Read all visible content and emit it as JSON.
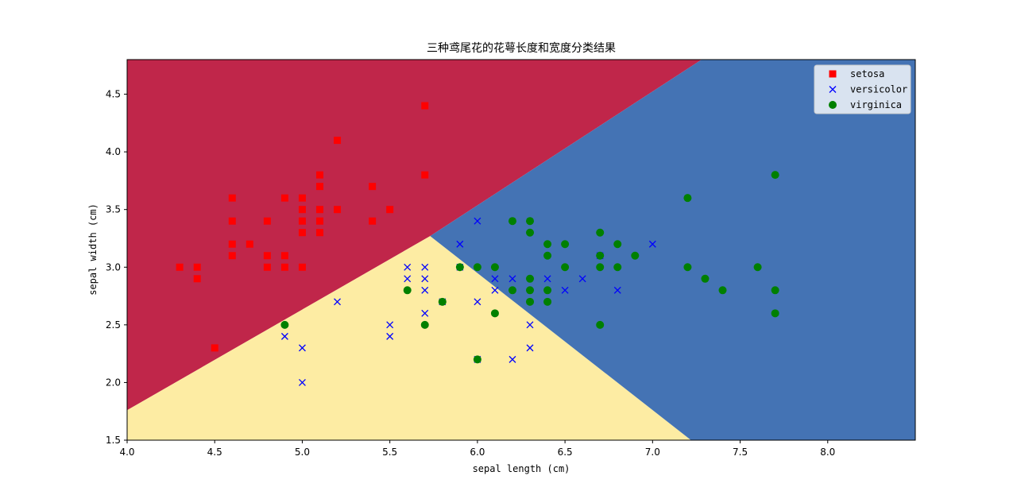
{
  "chart_data": {
    "type": "scatter",
    "title": "三种鸢尾花的花萼长度和宽度分类结果",
    "xlabel": "sepal length (cm)",
    "ylabel": "sepal width (cm)",
    "xlim": [
      4.0,
      8.5
    ],
    "ylim": [
      1.5,
      4.8
    ],
    "xticks": [
      "4.0",
      "4.5",
      "5.0",
      "5.5",
      "6.0",
      "6.5",
      "7.0",
      "7.5",
      "8.0"
    ],
    "yticks": [
      "1.5",
      "2.0",
      "2.5",
      "3.0",
      "3.5",
      "4.0",
      "4.5"
    ],
    "legend_position": "upper-right",
    "decision_regions": [
      {
        "class": "setosa",
        "color": "#c0264a",
        "polygon": [
          [
            4.0,
            1.76
          ],
          [
            5.73,
            3.27
          ],
          [
            7.28,
            4.8
          ],
          [
            4.0,
            4.8
          ]
        ]
      },
      {
        "class": "versicolor",
        "color": "#fdeca3",
        "polygon": [
          [
            4.0,
            1.5
          ],
          [
            7.22,
            1.5
          ],
          [
            5.73,
            3.27
          ],
          [
            4.0,
            1.76
          ]
        ]
      },
      {
        "class": "virginica",
        "color": "#4473b4",
        "polygon": [
          [
            5.73,
            3.27
          ],
          [
            7.22,
            1.5
          ],
          [
            8.5,
            1.5
          ],
          [
            8.5,
            4.8
          ],
          [
            7.28,
            4.8
          ]
        ]
      }
    ],
    "series": [
      {
        "name": "setosa",
        "marker": "square",
        "color": "#ff0000",
        "points": [
          [
            4.3,
            3.0
          ],
          [
            4.4,
            3.0
          ],
          [
            4.4,
            2.9
          ],
          [
            4.5,
            2.3
          ],
          [
            4.6,
            3.6
          ],
          [
            4.6,
            3.4
          ],
          [
            4.6,
            3.2
          ],
          [
            4.6,
            3.1
          ],
          [
            4.7,
            3.2
          ],
          [
            4.8,
            3.4
          ],
          [
            4.8,
            3.1
          ],
          [
            4.8,
            3.0
          ],
          [
            4.9,
            3.6
          ],
          [
            4.9,
            3.1
          ],
          [
            4.9,
            3.0
          ],
          [
            5.0,
            3.6
          ],
          [
            5.0,
            3.5
          ],
          [
            5.0,
            3.4
          ],
          [
            5.0,
            3.3
          ],
          [
            5.0,
            3.0
          ],
          [
            5.1,
            3.8
          ],
          [
            5.1,
            3.7
          ],
          [
            5.1,
            3.5
          ],
          [
            5.1,
            3.4
          ],
          [
            5.1,
            3.3
          ],
          [
            5.2,
            4.1
          ],
          [
            5.2,
            3.5
          ],
          [
            5.4,
            3.7
          ],
          [
            5.4,
            3.4
          ],
          [
            5.5,
            3.5
          ],
          [
            5.7,
            4.4
          ],
          [
            5.7,
            3.8
          ]
        ]
      },
      {
        "name": "versicolor",
        "marker": "x",
        "color": "#0000ff",
        "points": [
          [
            4.9,
            2.4
          ],
          [
            5.0,
            2.3
          ],
          [
            5.0,
            2.0
          ],
          [
            5.2,
            2.7
          ],
          [
            5.5,
            2.5
          ],
          [
            5.5,
            2.4
          ],
          [
            5.6,
            3.0
          ],
          [
            5.6,
            2.9
          ],
          [
            5.7,
            3.0
          ],
          [
            5.7,
            2.9
          ],
          [
            5.7,
            2.8
          ],
          [
            5.7,
            2.6
          ],
          [
            5.8,
            2.7
          ],
          [
            5.9,
            3.2
          ],
          [
            5.9,
            3.0
          ],
          [
            6.0,
            3.4
          ],
          [
            6.0,
            2.7
          ],
          [
            6.0,
            2.2
          ],
          [
            6.1,
            2.9
          ],
          [
            6.1,
            2.8
          ],
          [
            6.2,
            2.9
          ],
          [
            6.2,
            2.2
          ],
          [
            6.3,
            2.5
          ],
          [
            6.3,
            2.3
          ],
          [
            6.4,
            2.9
          ],
          [
            6.5,
            2.8
          ],
          [
            6.6,
            2.9
          ],
          [
            6.7,
            3.1
          ],
          [
            6.8,
            2.8
          ],
          [
            7.0,
            3.2
          ]
        ]
      },
      {
        "name": "virginica",
        "marker": "circle",
        "color": "#008000",
        "points": [
          [
            4.9,
            2.5
          ],
          [
            5.6,
            2.8
          ],
          [
            5.7,
            2.5
          ],
          [
            5.8,
            2.7
          ],
          [
            5.9,
            3.0
          ],
          [
            6.0,
            3.0
          ],
          [
            6.0,
            2.2
          ],
          [
            6.1,
            3.0
          ],
          [
            6.1,
            2.6
          ],
          [
            6.2,
            3.4
          ],
          [
            6.2,
            2.8
          ],
          [
            6.3,
            3.4
          ],
          [
            6.3,
            3.3
          ],
          [
            6.3,
            2.9
          ],
          [
            6.3,
            2.8
          ],
          [
            6.3,
            2.7
          ],
          [
            6.4,
            3.2
          ],
          [
            6.4,
            3.1
          ],
          [
            6.4,
            2.8
          ],
          [
            6.4,
            2.7
          ],
          [
            6.5,
            3.2
          ],
          [
            6.5,
            3.0
          ],
          [
            6.7,
            3.3
          ],
          [
            6.7,
            3.1
          ],
          [
            6.7,
            3.0
          ],
          [
            6.7,
            2.5
          ],
          [
            6.8,
            3.2
          ],
          [
            6.8,
            3.0
          ],
          [
            6.9,
            3.1
          ],
          [
            7.2,
            3.6
          ],
          [
            7.2,
            3.0
          ],
          [
            7.3,
            2.9
          ],
          [
            7.4,
            2.8
          ],
          [
            7.6,
            3.0
          ],
          [
            7.7,
            3.8
          ],
          [
            7.7,
            2.8
          ],
          [
            7.7,
            2.6
          ]
        ]
      }
    ]
  }
}
